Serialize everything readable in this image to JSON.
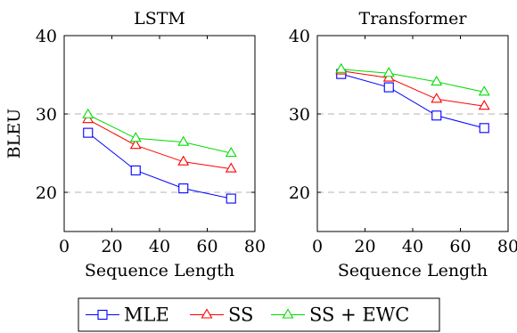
{
  "chart_data": [
    {
      "type": "line",
      "title": "LSTM",
      "xlabel": "Sequence Length",
      "ylabel": "BLEU",
      "xlim": [
        0,
        80
      ],
      "ylim": [
        15,
        40
      ],
      "xticks": [
        0,
        20,
        40,
        60,
        80
      ],
      "yticks": [
        20,
        30,
        40
      ],
      "grid": "dashed horizontal at y-ticks",
      "series": [
        {
          "name": "MLE",
          "color": "#0000ff",
          "marker": "square",
          "points": [
            [
              10,
              27.6
            ],
            [
              30,
              22.8
            ],
            [
              50,
              20.5
            ],
            [
              70,
              19.2
            ]
          ]
        },
        {
          "name": "SS",
          "color": "#ff0000",
          "marker": "triangle",
          "points": [
            [
              10,
              29.3
            ],
            [
              30,
              26.0
            ],
            [
              50,
              23.9
            ],
            [
              70,
              23.0
            ]
          ]
        },
        {
          "name": "SS + EWC",
          "color": "#00dd00",
          "marker": "triangle",
          "points": [
            [
              10,
              29.9
            ],
            [
              30,
              26.9
            ],
            [
              50,
              26.4
            ],
            [
              70,
              25.0
            ]
          ]
        }
      ]
    },
    {
      "type": "line",
      "title": "Transformer",
      "xlabel": "Sequence Length",
      "ylabel": "",
      "xlim": [
        0,
        80
      ],
      "ylim": [
        15,
        40
      ],
      "xticks": [
        0,
        20,
        40,
        60,
        80
      ],
      "yticks": [
        20,
        30,
        40
      ],
      "grid": "dashed horizontal at y-ticks",
      "series": [
        {
          "name": "MLE",
          "color": "#0000ff",
          "marker": "square",
          "points": [
            [
              10,
              35.1
            ],
            [
              30,
              33.4
            ],
            [
              50,
              29.8
            ],
            [
              70,
              28.2
            ]
          ]
        },
        {
          "name": "SS",
          "color": "#ff0000",
          "marker": "triangle",
          "points": [
            [
              10,
              35.5
            ],
            [
              30,
              34.6
            ],
            [
              50,
              31.9
            ],
            [
              70,
              31.0
            ]
          ]
        },
        {
          "name": "SS + EWC",
          "color": "#00dd00",
          "marker": "triangle",
          "points": [
            [
              10,
              35.7
            ],
            [
              30,
              35.2
            ],
            [
              50,
              34.1
            ],
            [
              70,
              32.8
            ]
          ]
        }
      ]
    }
  ],
  "legend": {
    "placement": "bottom-center",
    "items": [
      {
        "label": "MLE",
        "color": "#0000ff",
        "marker": "square"
      },
      {
        "label": "SS",
        "color": "#ff0000",
        "marker": "triangle"
      },
      {
        "label": "SS + EWC",
        "color": "#00dd00",
        "marker": "triangle"
      }
    ]
  }
}
